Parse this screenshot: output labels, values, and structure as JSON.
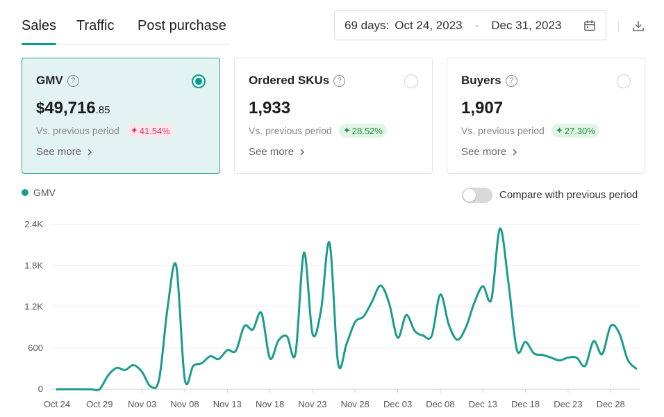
{
  "tabs": [
    {
      "label": "Sales",
      "active": true
    },
    {
      "label": "Traffic",
      "active": false
    },
    {
      "label": "Post purchase",
      "active": false
    }
  ],
  "date_range": {
    "days": "69 days:",
    "start": "Oct 24, 2023",
    "separator": "-",
    "end": "Dec 31, 2023",
    "icon": "calendar-icon"
  },
  "download_icon": "download-icon",
  "cards": [
    {
      "title": "GMV",
      "currency": "$",
      "value": "49,716",
      "decimals": ".85",
      "vs_label": "Vs. previous period",
      "change": "41.54%",
      "change_color": "#e0335a",
      "see_more": "See more",
      "selected": true
    },
    {
      "title": "Ordered SKUs",
      "currency": "",
      "value": "1,933",
      "decimals": "",
      "vs_label": "Vs. previous period",
      "change": "28.52%",
      "change_color": "#23963f",
      "see_more": "See more",
      "selected": false
    },
    {
      "title": "Buyers",
      "currency": "",
      "value": "1,907",
      "decimals": "",
      "vs_label": "Vs. previous period",
      "change": "27.30%",
      "change_color": "#23963f",
      "see_more": "See more",
      "selected": false
    }
  ],
  "legend": {
    "label": "GMV",
    "color": "#1a9c8c"
  },
  "compare_toggle": {
    "label": "Compare with previous period",
    "on": false
  },
  "chart_data": {
    "type": "line",
    "series": [
      {
        "name": "GMV",
        "color": "#1a9c8c",
        "x": [
          "Oct 24",
          "Oct 25",
          "Oct 26",
          "Oct 27",
          "Oct 28",
          "Oct 29",
          "Oct 30",
          "Oct 31",
          "Nov 01",
          "Nov 02",
          "Nov 03",
          "Nov 04",
          "Nov 05",
          "Nov 06",
          "Nov 07",
          "Nov 08",
          "Nov 09",
          "Nov 10",
          "Nov 11",
          "Nov 12",
          "Nov 13",
          "Nov 14",
          "Nov 15",
          "Nov 16",
          "Nov 17",
          "Nov 18",
          "Nov 19",
          "Nov 20",
          "Nov 21",
          "Nov 22",
          "Nov 23",
          "Nov 24",
          "Nov 25",
          "Nov 26",
          "Nov 27",
          "Nov 28",
          "Nov 29",
          "Nov 30",
          "Dec 01",
          "Dec 02",
          "Dec 03",
          "Dec 04",
          "Dec 05",
          "Dec 06",
          "Dec 07",
          "Dec 08",
          "Dec 09",
          "Dec 10",
          "Dec 11",
          "Dec 12",
          "Dec 13",
          "Dec 14",
          "Dec 15",
          "Dec 16",
          "Dec 17",
          "Dec 18",
          "Dec 19",
          "Dec 20",
          "Dec 21",
          "Dec 22",
          "Dec 23",
          "Dec 24",
          "Dec 25",
          "Dec 26",
          "Dec 27",
          "Dec 28",
          "Dec 29",
          "Dec 30",
          "Dec 31"
        ],
        "values": [
          0,
          0,
          0,
          0,
          0,
          0,
          200,
          310,
          280,
          350,
          250,
          40,
          150,
          1200,
          1800,
          150,
          340,
          380,
          480,
          440,
          570,
          560,
          920,
          870,
          1110,
          450,
          710,
          770,
          520,
          1990,
          810,
          1150,
          2130,
          380,
          660,
          980,
          1060,
          1280,
          1510,
          1250,
          750,
          1080,
          850,
          780,
          780,
          1380,
          940,
          720,
          900,
          1260,
          1500,
          1310,
          2340,
          1550,
          570,
          690,
          520,
          500,
          460,
          420,
          460,
          460,
          340,
          700,
          510,
          920,
          820,
          430,
          300
        ]
      }
    ],
    "x_ticks": [
      "Oct 24",
      "Oct 29",
      "Nov 03",
      "Nov 08",
      "Nov 13",
      "Nov 18",
      "Nov 23",
      "Nov 28",
      "Dec 03",
      "Dec 08",
      "Dec 13",
      "Dec 18",
      "Dec 23",
      "Dec 28"
    ],
    "y_ticks": [
      "0",
      "600",
      "1.2K",
      "1.8K",
      "2.4K"
    ],
    "y_tick_values": [
      0,
      600,
      1200,
      1800,
      2400
    ],
    "ylim": [
      0,
      2400
    ],
    "grid": true,
    "legend_position": "top-left"
  }
}
